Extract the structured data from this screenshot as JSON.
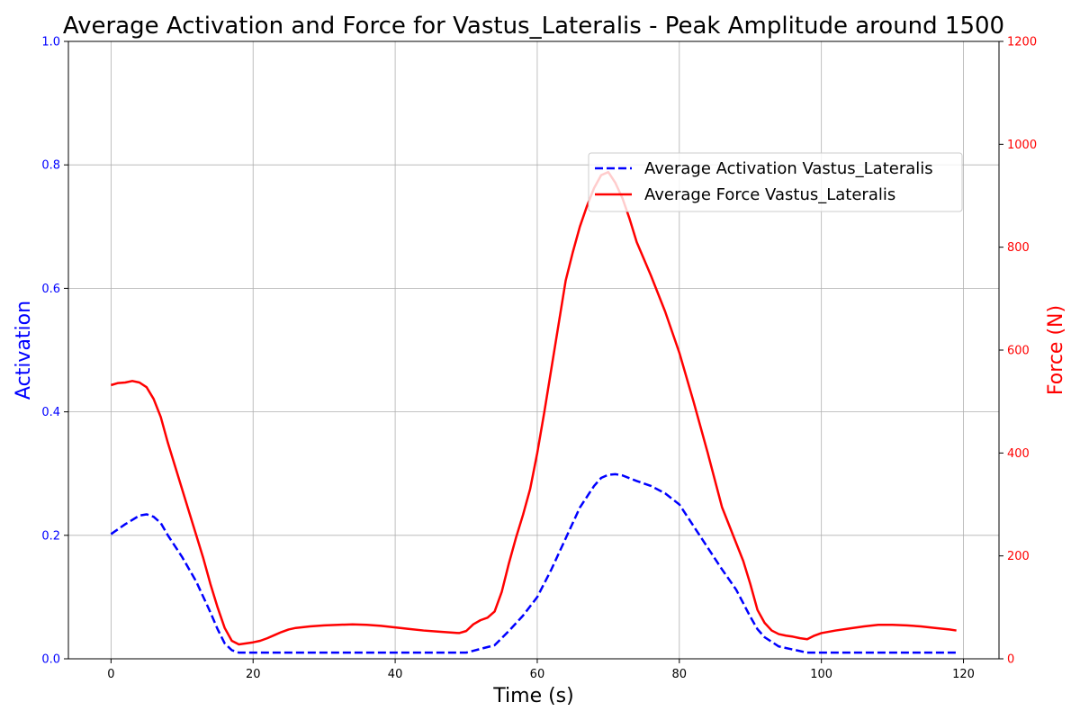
{
  "chart_data": {
    "type": "line",
    "title": "Average Activation and Force for Vastus_Lateralis - Peak Amplitude around 1500",
    "xlabel": "Time (s)",
    "ylabel_left": "Activation",
    "ylabel_right": "Force (N)",
    "xlim": [
      -6,
      125
    ],
    "ylim_left": [
      0,
      1.0
    ],
    "ylim_right": [
      0,
      1200
    ],
    "x_ticks": [
      0,
      20,
      40,
      60,
      80,
      100,
      120
    ],
    "y_left_ticks": [
      0.0,
      0.2,
      0.4,
      0.6,
      0.8,
      1.0
    ],
    "y_right_ticks": [
      0,
      200,
      400,
      600,
      800,
      1000,
      1200
    ],
    "grid": true,
    "legend_position": "upper right",
    "colors": {
      "left_axis": "#0000ff",
      "right_axis": "#ff0000"
    },
    "series": [
      {
        "name": "Average Activation Vastus_Lateralis",
        "axis": "left",
        "style": "dashed",
        "color": "#0000ff",
        "points": [
          [
            0,
            0.202
          ],
          [
            2,
            0.218
          ],
          [
            4,
            0.232
          ],
          [
            5,
            0.234
          ],
          [
            6,
            0.23
          ],
          [
            7,
            0.22
          ],
          [
            8,
            0.2
          ],
          [
            10,
            0.165
          ],
          [
            12,
            0.125
          ],
          [
            14,
            0.075
          ],
          [
            15,
            0.048
          ],
          [
            16,
            0.025
          ],
          [
            17,
            0.014
          ],
          [
            18,
            0.01
          ],
          [
            20,
            0.01
          ],
          [
            30,
            0.01
          ],
          [
            40,
            0.01
          ],
          [
            50,
            0.01
          ],
          [
            52,
            0.016
          ],
          [
            54,
            0.022
          ],
          [
            56,
            0.045
          ],
          [
            58,
            0.07
          ],
          [
            60,
            0.1
          ],
          [
            62,
            0.145
          ],
          [
            64,
            0.195
          ],
          [
            66,
            0.245
          ],
          [
            68,
            0.28
          ],
          [
            69,
            0.293
          ],
          [
            70,
            0.298
          ],
          [
            71,
            0.299
          ],
          [
            72,
            0.297
          ],
          [
            74,
            0.288
          ],
          [
            76,
            0.28
          ],
          [
            78,
            0.268
          ],
          [
            80,
            0.25
          ],
          [
            82,
            0.215
          ],
          [
            84,
            0.18
          ],
          [
            86,
            0.145
          ],
          [
            88,
            0.112
          ],
          [
            90,
            0.068
          ],
          [
            91,
            0.048
          ],
          [
            92,
            0.035
          ],
          [
            94,
            0.02
          ],
          [
            96,
            0.015
          ],
          [
            98,
            0.01
          ],
          [
            100,
            0.01
          ],
          [
            110,
            0.01
          ],
          [
            119,
            0.01
          ]
        ]
      },
      {
        "name": "Average Force Vastus_Lateralis",
        "axis": "right",
        "style": "solid",
        "color": "#ff0000",
        "points": [
          [
            0,
            532
          ],
          [
            1,
            536
          ],
          [
            2,
            537
          ],
          [
            3,
            540
          ],
          [
            4,
            537
          ],
          [
            5,
            528
          ],
          [
            6,
            505
          ],
          [
            7,
            470
          ],
          [
            8,
            420
          ],
          [
            9,
            375
          ],
          [
            10,
            330
          ],
          [
            11,
            285
          ],
          [
            12,
            240
          ],
          [
            13,
            195
          ],
          [
            14,
            145
          ],
          [
            15,
            100
          ],
          [
            16,
            60
          ],
          [
            17,
            35
          ],
          [
            18,
            28
          ],
          [
            19,
            30
          ],
          [
            20,
            32
          ],
          [
            21,
            35
          ],
          [
            22,
            40
          ],
          [
            23,
            46
          ],
          [
            24,
            52
          ],
          [
            25,
            57
          ],
          [
            26,
            60
          ],
          [
            28,
            63
          ],
          [
            30,
            65
          ],
          [
            32,
            66
          ],
          [
            34,
            67
          ],
          [
            36,
            66
          ],
          [
            38,
            64
          ],
          [
            40,
            61
          ],
          [
            42,
            58
          ],
          [
            44,
            55
          ],
          [
            46,
            53
          ],
          [
            48,
            51
          ],
          [
            49,
            50
          ],
          [
            50,
            54
          ],
          [
            51,
            67
          ],
          [
            52,
            75
          ],
          [
            53,
            80
          ],
          [
            54,
            92
          ],
          [
            55,
            130
          ],
          [
            56,
            185
          ],
          [
            57,
            235
          ],
          [
            58,
            280
          ],
          [
            59,
            330
          ],
          [
            60,
            400
          ],
          [
            61,
            480
          ],
          [
            62,
            565
          ],
          [
            63,
            650
          ],
          [
            64,
            735
          ],
          [
            65,
            790
          ],
          [
            66,
            840
          ],
          [
            67,
            880
          ],
          [
            68,
            915
          ],
          [
            69,
            940
          ],
          [
            70,
            946
          ],
          [
            71,
            925
          ],
          [
            72,
            895
          ],
          [
            73,
            855
          ],
          [
            74,
            810
          ],
          [
            76,
            745
          ],
          [
            78,
            675
          ],
          [
            80,
            595
          ],
          [
            82,
            500
          ],
          [
            83,
            450
          ],
          [
            84,
            400
          ],
          [
            86,
            295
          ],
          [
            88,
            225
          ],
          [
            89,
            190
          ],
          [
            90,
            145
          ],
          [
            91,
            95
          ],
          [
            92,
            70
          ],
          [
            93,
            55
          ],
          [
            94,
            48
          ],
          [
            95,
            45
          ],
          [
            96,
            43
          ],
          [
            97,
            40
          ],
          [
            98,
            38
          ],
          [
            99,
            45
          ],
          [
            100,
            50
          ],
          [
            102,
            55
          ],
          [
            104,
            59
          ],
          [
            106,
            63
          ],
          [
            108,
            66
          ],
          [
            110,
            66
          ],
          [
            112,
            65
          ],
          [
            114,
            63
          ],
          [
            116,
            60
          ],
          [
            118,
            57
          ],
          [
            119,
            55
          ]
        ]
      }
    ]
  }
}
